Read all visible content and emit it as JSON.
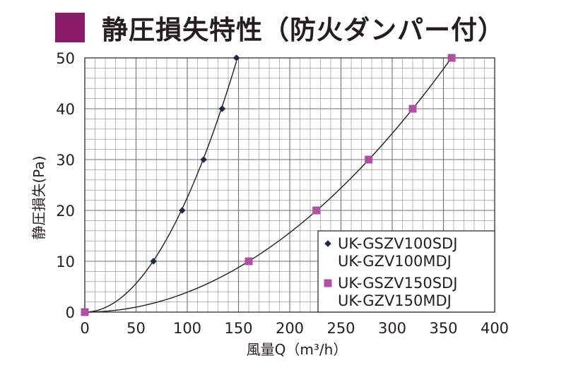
{
  "title": "静圧損失特性（防火ダンパー付）",
  "colors": {
    "accent": "#8b1a6b",
    "grid": "#8a8a8a",
    "series1": "#1f2a44",
    "series2": "#b14fa3"
  },
  "chart_data": {
    "type": "line",
    "title": "静圧損失特性（防火ダンパー付）",
    "xlabel": "風量Q（m³/h）",
    "ylabel": "静圧損失(Pa)",
    "xlim": [
      0,
      400
    ],
    "ylim": [
      0,
      50
    ],
    "xticks": [
      0,
      50,
      100,
      150,
      200,
      250,
      300,
      350,
      400
    ],
    "yticks": [
      0,
      10,
      20,
      30,
      40,
      50
    ],
    "grid": true,
    "legend_position": "bottom-right",
    "series": [
      {
        "name": "UK-GSZV100SDJ\nUK-GZV100MDJ",
        "legend_lines": [
          "UK-GSZV100SDJ",
          "UK-GZV100MDJ"
        ],
        "marker": "diamond",
        "x": [
          0,
          67,
          95,
          116,
          134,
          148
        ],
        "y": [
          0,
          10,
          20,
          30,
          40,
          50
        ]
      },
      {
        "name": "UK-GSZV150SDJ\nUK-GZV150MDJ",
        "legend_lines": [
          "UK-GSZV150SDJ",
          "UK-GZV150MDJ"
        ],
        "marker": "square",
        "x": [
          0,
          160,
          226,
          277,
          320,
          358
        ],
        "y": [
          0,
          10,
          20,
          30,
          40,
          50
        ]
      }
    ]
  }
}
